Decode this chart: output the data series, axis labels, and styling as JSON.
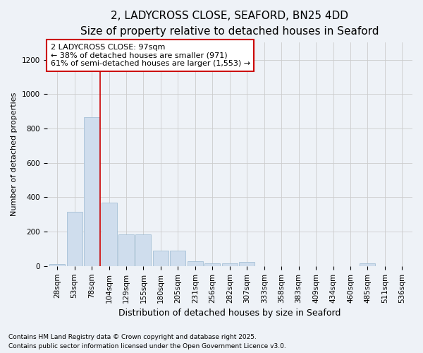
{
  "title_line1": "2, LADYCROSS CLOSE, SEAFORD, BN25 4DD",
  "title_line2": "Size of property relative to detached houses in Seaford",
  "xlabel": "Distribution of detached houses by size in Seaford",
  "ylabel": "Number of detached properties",
  "categories": [
    "28sqm",
    "53sqm",
    "78sqm",
    "104sqm",
    "129sqm",
    "155sqm",
    "180sqm",
    "205sqm",
    "231sqm",
    "256sqm",
    "282sqm",
    "307sqm",
    "333sqm",
    "358sqm",
    "383sqm",
    "409sqm",
    "434sqm",
    "460sqm",
    "485sqm",
    "511sqm",
    "536sqm"
  ],
  "values": [
    10,
    315,
    865,
    370,
    185,
    185,
    90,
    90,
    30,
    15,
    15,
    25,
    0,
    0,
    0,
    0,
    0,
    0,
    15,
    0,
    0
  ],
  "bar_color": "#cfdded",
  "bar_edge_color": "#9ab8d0",
  "grid_color": "#cccccc",
  "background_color": "#eef2f7",
  "vline_color": "#cc0000",
  "vline_index": 2.5,
  "annotation_text": "2 LADYCROSS CLOSE: 97sqm\n← 38% of detached houses are smaller (971)\n61% of semi-detached houses are larger (1,553) →",
  "annotation_box_facecolor": "#ffffff",
  "annotation_box_edgecolor": "#cc0000",
  "ylim": [
    0,
    1300
  ],
  "yticks": [
    0,
    200,
    400,
    600,
    800,
    1000,
    1200
  ],
  "footnote_line1": "Contains HM Land Registry data © Crown copyright and database right 2025.",
  "footnote_line2": "Contains public sector information licensed under the Open Government Licence v3.0.",
  "title_fontsize": 11,
  "subtitle_fontsize": 10,
  "axis_label_fontsize": 9,
  "ylabel_fontsize": 8,
  "tick_fontsize": 7.5,
  "annotation_fontsize": 8,
  "footnote_fontsize": 6.5
}
